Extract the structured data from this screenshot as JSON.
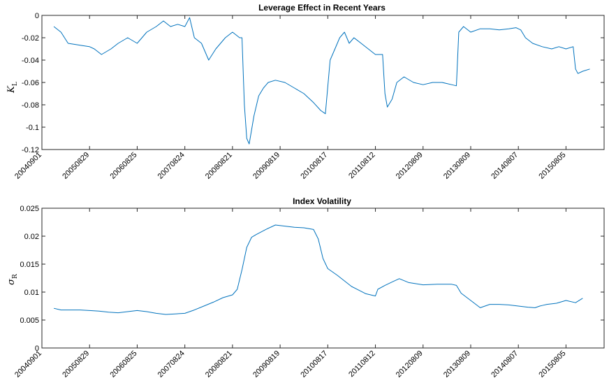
{
  "chart_data": [
    {
      "type": "line",
      "title": "Leverage Effect in Recent Years",
      "ylabel": "K",
      "ylabel_subscript": "L",
      "xlabel": "",
      "x_tick_labels": [
        "20040901",
        "20050829",
        "20060825",
        "20070824",
        "20080821",
        "20090819",
        "20100817",
        "20110812",
        "20120809",
        "20130809",
        "20140807",
        "20150805"
      ],
      "x_index_range": [
        0,
        11.8
      ],
      "ylim": [
        -0.12,
        0
      ],
      "y_ticks": [
        0,
        -0.02,
        -0.04,
        -0.06,
        -0.08,
        -0.1,
        -0.12
      ],
      "y_tick_labels": [
        "0",
        "-0.02",
        "-0.04",
        "-0.06",
        "-0.08",
        "-0.1",
        "-0.12"
      ],
      "grid": false,
      "series": [
        {
          "color": "#0072BD",
          "x": [
            0.25,
            0.4,
            0.55,
            0.7,
            0.85,
            1.0,
            1.1,
            1.25,
            1.45,
            1.6,
            1.8,
            2.0,
            2.2,
            2.4,
            2.55,
            2.7,
            2.85,
            3.0,
            3.1,
            3.2,
            3.35,
            3.5,
            3.65,
            3.75,
            3.85,
            4.0,
            4.15,
            4.2,
            4.25,
            4.3,
            4.35,
            4.45,
            4.55,
            4.65,
            4.75,
            4.9,
            5.1,
            5.3,
            5.5,
            5.7,
            5.85,
            5.95,
            6.05,
            6.15,
            6.25,
            6.35,
            6.45,
            6.55,
            6.7,
            6.85,
            7.0,
            7.15,
            7.2,
            7.25,
            7.35,
            7.45,
            7.6,
            7.8,
            8.0,
            8.2,
            8.4,
            8.6,
            8.7,
            8.75,
            8.85,
            9.0,
            9.2,
            9.4,
            9.6,
            9.8,
            9.95,
            10.05,
            10.15,
            10.3,
            10.5,
            10.7,
            10.85,
            11.0,
            11.15,
            11.2,
            11.25,
            11.35,
            11.5
          ],
          "y": [
            -0.01,
            -0.015,
            -0.025,
            -0.026,
            -0.027,
            -0.028,
            -0.03,
            -0.035,
            -0.03,
            -0.025,
            -0.02,
            -0.025,
            -0.015,
            -0.01,
            -0.005,
            -0.01,
            -0.008,
            -0.01,
            -0.002,
            -0.02,
            -0.025,
            -0.04,
            -0.03,
            -0.025,
            -0.02,
            -0.015,
            -0.02,
            -0.02,
            -0.08,
            -0.11,
            -0.115,
            -0.09,
            -0.072,
            -0.065,
            -0.06,
            -0.058,
            -0.06,
            -0.065,
            -0.07,
            -0.078,
            -0.085,
            -0.088,
            -0.04,
            -0.03,
            -0.02,
            -0.015,
            -0.025,
            -0.02,
            -0.025,
            -0.03,
            -0.035,
            -0.035,
            -0.07,
            -0.082,
            -0.075,
            -0.06,
            -0.055,
            -0.06,
            -0.062,
            -0.06,
            -0.06,
            -0.062,
            -0.063,
            -0.015,
            -0.01,
            -0.015,
            -0.012,
            -0.012,
            -0.013,
            -0.012,
            -0.011,
            -0.013,
            -0.02,
            -0.025,
            -0.028,
            -0.03,
            -0.028,
            -0.03,
            -0.028,
            -0.048,
            -0.052,
            -0.05,
            -0.048
          ]
        }
      ]
    },
    {
      "type": "line",
      "title": "Index Volatility",
      "ylabel": "σ",
      "ylabel_subscript": "R",
      "xlabel": "",
      "x_tick_labels": [
        "20040901",
        "20050829",
        "20060825",
        "20070824",
        "20080821",
        "20090819",
        "20100817",
        "20110812",
        "20120809",
        "20130809",
        "20140807",
        "20150805"
      ],
      "x_index_range": [
        0,
        11.8
      ],
      "ylim": [
        0,
        0.025
      ],
      "y_ticks": [
        0,
        0.005,
        0.01,
        0.015,
        0.02,
        0.025
      ],
      "y_tick_labels": [
        "0",
        "0.005",
        "0.01",
        "0.015",
        "0.02",
        "0.025"
      ],
      "grid": false,
      "series": [
        {
          "color": "#0072BD",
          "x": [
            0.25,
            0.4,
            0.6,
            0.8,
            1.0,
            1.2,
            1.4,
            1.6,
            1.8,
            2.0,
            2.2,
            2.4,
            2.6,
            2.8,
            3.0,
            3.2,
            3.4,
            3.6,
            3.8,
            4.0,
            4.1,
            4.2,
            4.3,
            4.4,
            4.5,
            4.7,
            4.9,
            5.1,
            5.3,
            5.5,
            5.7,
            5.8,
            5.9,
            6.0,
            6.2,
            6.5,
            6.8,
            7.0,
            7.05,
            7.2,
            7.35,
            7.5,
            7.7,
            8.0,
            8.3,
            8.6,
            8.7,
            8.8,
            9.0,
            9.2,
            9.4,
            9.6,
            9.8,
            10.0,
            10.2,
            10.35,
            10.45,
            10.5,
            10.6,
            10.8,
            11.0,
            11.2,
            11.35
          ],
          "y": [
            0.0071,
            0.0068,
            0.0068,
            0.0068,
            0.0067,
            0.0066,
            0.0064,
            0.0063,
            0.0065,
            0.0067,
            0.0065,
            0.0062,
            0.006,
            0.0061,
            0.0062,
            0.0068,
            0.0075,
            0.0082,
            0.009,
            0.0095,
            0.0105,
            0.014,
            0.018,
            0.0198,
            0.0203,
            0.0212,
            0.022,
            0.0218,
            0.0216,
            0.0215,
            0.0212,
            0.0195,
            0.016,
            0.0142,
            0.013,
            0.011,
            0.0097,
            0.0093,
            0.0105,
            0.0112,
            0.0118,
            0.0124,
            0.0117,
            0.0113,
            0.0114,
            0.0114,
            0.0112,
            0.0098,
            0.0085,
            0.0072,
            0.0078,
            0.0078,
            0.0077,
            0.0075,
            0.0073,
            0.0072,
            0.0075,
            0.0076,
            0.0078,
            0.008,
            0.0085,
            0.0081,
            0.0089
          ]
        }
      ]
    }
  ]
}
